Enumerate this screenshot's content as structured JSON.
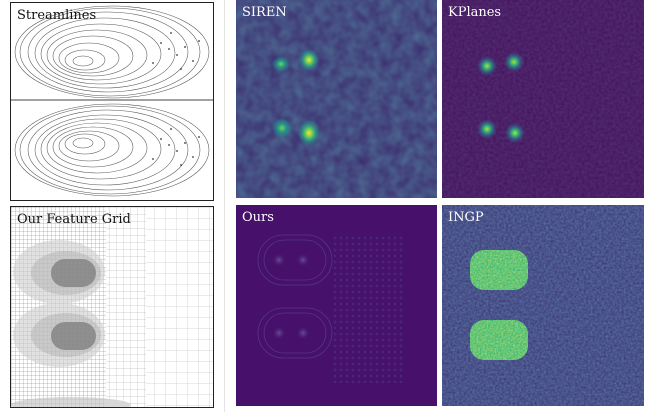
{
  "panels": {
    "streamlines": {
      "label": "Streamlines"
    },
    "feature_grid": {
      "label": "Our Feature Grid"
    },
    "siren": {
      "label": "SIREN"
    },
    "kplanes": {
      "label": "KPlanes"
    },
    "ours": {
      "label": "Ours"
    },
    "ingp": {
      "label": "INGP"
    }
  },
  "colors": {
    "colormap_low": "#440154",
    "colormap_mid": "#2c728e",
    "colormap_high": "#fde725",
    "grid_line": "#9a9a9a",
    "streamline": "#555555"
  }
}
